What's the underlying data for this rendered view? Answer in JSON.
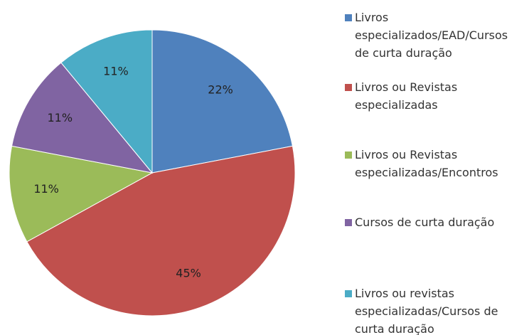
{
  "chart_data": {
    "type": "pie",
    "categories": [
      "Livros especializados/EAD/Cursos de curta duração",
      "Livros ou Revistas especializadas",
      "Livros ou Revistas especializadas/Encontros",
      "Cursos de curta duração",
      "Livros ou revistas especializadas/Cursos de curta duração"
    ],
    "values": [
      22,
      45,
      11,
      11,
      11
    ],
    "value_labels": [
      "22%",
      "45%",
      "11%",
      "11%",
      "11%"
    ],
    "colors": [
      "#4f81bd",
      "#c0504d",
      "#9bbb59",
      "#8064a2",
      "#4bacc6"
    ],
    "legend": "right"
  }
}
